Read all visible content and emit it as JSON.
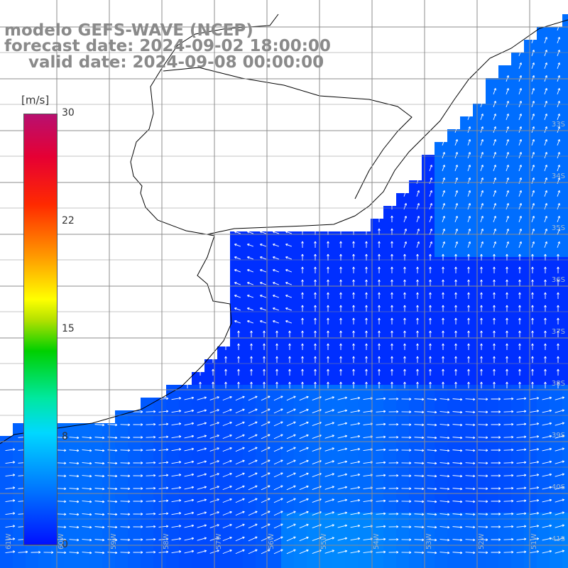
{
  "title": {
    "line1": "modelo GEFS-WAVE (NCEP)",
    "line2": "forecast date: 2024-09-02 18:00:00",
    "line3": "valid date: 2024-09-08 00:00:00"
  },
  "colorbar": {
    "units": "[m/s]",
    "ticks": [
      "30",
      "22",
      "15",
      "8",
      "0"
    ],
    "colors": [
      "#0010ff",
      "#0070ff",
      "#00d8ff",
      "#00d000",
      "#ffff00",
      "#ff2a00",
      "#b81070"
    ]
  },
  "grid": {
    "lat_labels": [
      "33S",
      "34S",
      "35S",
      "36S",
      "37S",
      "38S",
      "39S",
      "40S",
      "41S"
    ],
    "lon_labels": [
      "61W",
      "60W",
      "59W",
      "58W",
      "57W",
      "56W",
      "55W",
      "54W",
      "53W",
      "52W",
      "51W"
    ]
  },
  "colors": {
    "land": "#ffffff",
    "coastline": "#000000",
    "gridline": "#8c8c8c",
    "arrows": "#ffffff",
    "ocean_low": "#0014ff",
    "ocean_mid": "#0a7dff",
    "ocean_high": "#16c8ff"
  }
}
